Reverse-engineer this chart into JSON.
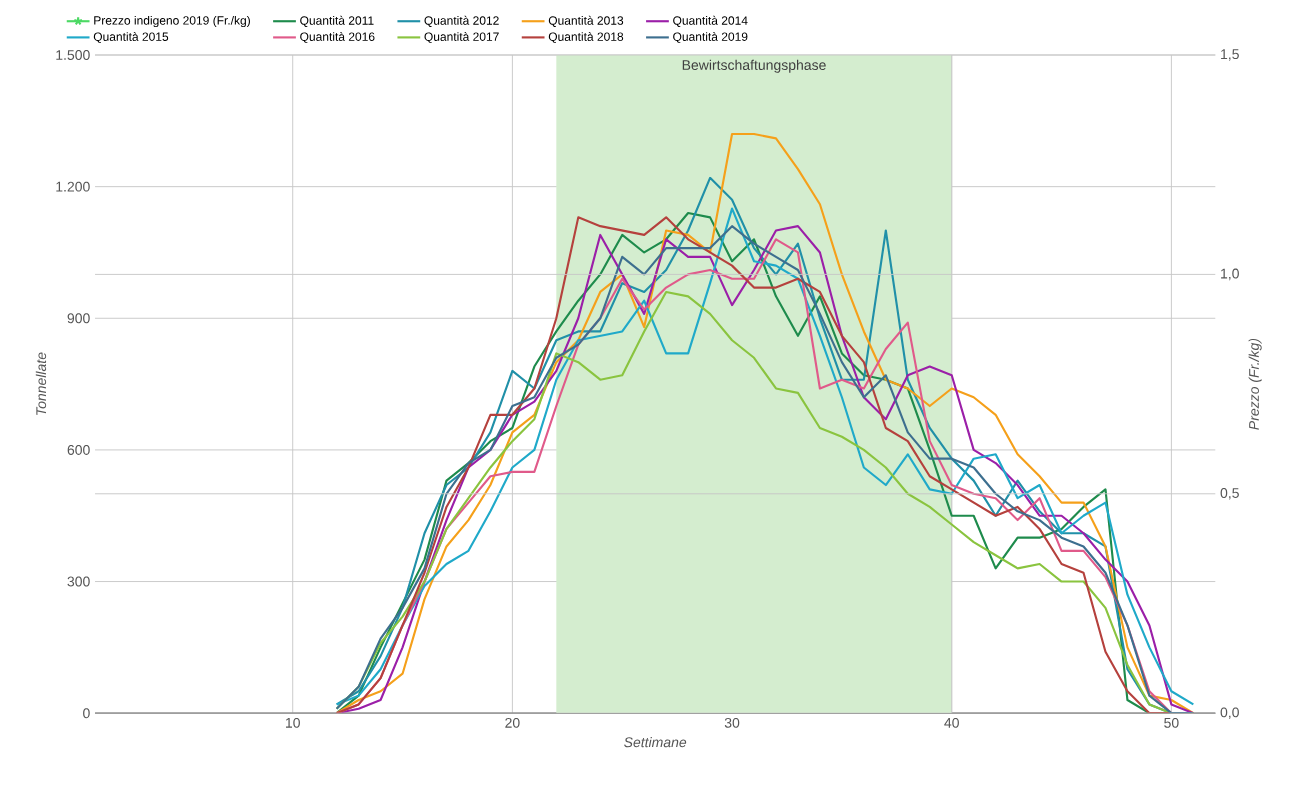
{
  "chart_data": {
    "type": "line",
    "xlabel": "Settimane",
    "ylabel": "Tonnellate",
    "y2label": "Prezzo (Fr./kg)",
    "x": [
      12,
      13,
      14,
      15,
      16,
      17,
      18,
      19,
      20,
      21,
      22,
      23,
      24,
      25,
      26,
      27,
      28,
      29,
      30,
      31,
      32,
      33,
      34,
      35,
      36,
      37,
      38,
      39,
      40,
      41,
      42,
      43,
      44,
      45,
      46,
      47,
      48,
      49,
      50,
      51
    ],
    "xlim": [
      1,
      52
    ],
    "xticks": [
      10,
      20,
      30,
      40,
      50
    ],
    "ylim": [
      0,
      1500
    ],
    "yticks": [
      {
        "value": 0,
        "label": "0"
      },
      {
        "value": 300,
        "label": "300"
      },
      {
        "value": 600,
        "label": "600"
      },
      {
        "value": 900,
        "label": "900"
      },
      {
        "value": 1200,
        "label": "1.200"
      },
      {
        "value": 1500,
        "label": "1.500"
      }
    ],
    "y2lim": [
      0,
      1.5
    ],
    "y2ticks": [
      {
        "value": 0,
        "label": "0,0"
      },
      {
        "value": 0.5,
        "label": "0,5"
      },
      {
        "value": 1.0,
        "label": "1,0"
      },
      {
        "value": 1.5,
        "label": "1,5"
      }
    ],
    "grid": true,
    "legend": "top",
    "line_style": "solid",
    "marker": "none",
    "bands": [
      {
        "axis": "x",
        "from": 22,
        "to": 40,
        "label": "Bewirtschaftungsphase",
        "color": "#d4edcf"
      }
    ],
    "series": [
      {
        "name": "Prezzo indigeno 2019 (Fr./kg)",
        "color": "#4cd964",
        "marker": "star",
        "values": [
          null,
          null,
          null,
          null,
          null,
          null,
          null,
          null,
          null,
          null,
          null,
          null,
          null,
          null,
          null,
          null,
          null,
          null,
          null,
          null,
          null,
          null,
          null,
          null,
          null,
          null,
          null,
          null,
          null,
          null,
          null,
          null,
          null,
          null,
          null,
          null,
          null,
          null,
          null,
          null
        ]
      },
      {
        "name": "Quantità 2011",
        "color": "#1e8b4c",
        "values": [
          0,
          40,
          150,
          250,
          350,
          530,
          570,
          620,
          650,
          790,
          870,
          940,
          1000,
          1090,
          1050,
          1080,
          1140,
          1130,
          1030,
          1080,
          950,
          860,
          950,
          820,
          770,
          760,
          740,
          600,
          450,
          450,
          330,
          400,
          400,
          420,
          470,
          510,
          30,
          0,
          0,
          0
        ]
      },
      {
        "name": "Quantità 2012",
        "color": "#2090a8",
        "values": [
          20,
          50,
          130,
          240,
          410,
          520,
          560,
          640,
          780,
          740,
          850,
          870,
          870,
          980,
          960,
          1010,
          1100,
          1220,
          1170,
          1060,
          1000,
          1070,
          900,
          760,
          760,
          1100,
          760,
          650,
          580,
          530,
          450,
          530,
          460,
          410,
          410,
          380,
          100,
          20,
          0,
          0
        ]
      },
      {
        "name": "Quantità 2013",
        "color": "#f5a01a",
        "values": [
          0,
          30,
          50,
          90,
          260,
          380,
          440,
          520,
          640,
          680,
          800,
          850,
          960,
          1000,
          880,
          1100,
          1090,
          1050,
          1320,
          1320,
          1310,
          1240,
          1160,
          1000,
          870,
          760,
          740,
          700,
          740,
          720,
          680,
          590,
          540,
          480,
          480,
          380,
          150,
          40,
          30,
          0
        ]
      },
      {
        "name": "Quantità 2014",
        "color": "#9b1fa8",
        "values": [
          0,
          10,
          30,
          150,
          300,
          440,
          560,
          600,
          680,
          710,
          780,
          900,
          1090,
          1000,
          910,
          1080,
          1040,
          1040,
          930,
          1010,
          1100,
          1110,
          1050,
          860,
          720,
          670,
          770,
          790,
          770,
          600,
          570,
          520,
          450,
          450,
          410,
          350,
          300,
          200,
          20,
          0
        ]
      },
      {
        "name": "Quantità 2015",
        "color": "#1fa9c9",
        "values": [
          20,
          40,
          100,
          200,
          290,
          340,
          370,
          460,
          560,
          600,
          760,
          850,
          860,
          870,
          940,
          820,
          820,
          980,
          1150,
          1030,
          1020,
          990,
          860,
          720,
          560,
          520,
          590,
          510,
          500,
          580,
          590,
          490,
          520,
          410,
          450,
          480,
          270,
          150,
          50,
          20
        ]
      },
      {
        "name": "Quantità 2016",
        "color": "#e05a8a",
        "values": [
          0,
          20,
          80,
          200,
          300,
          420,
          480,
          540,
          550,
          550,
          700,
          840,
          900,
          990,
          920,
          970,
          1000,
          1010,
          990,
          990,
          1080,
          1050,
          740,
          760,
          740,
          830,
          890,
          620,
          520,
          500,
          490,
          440,
          490,
          370,
          370,
          310,
          200,
          50,
          0,
          0
        ]
      },
      {
        "name": "Quantità 2017",
        "color": "#8ac43f",
        "values": [
          10,
          60,
          160,
          220,
          300,
          420,
          490,
          560,
          620,
          670,
          820,
          800,
          760,
          770,
          870,
          960,
          950,
          910,
          850,
          810,
          740,
          730,
          650,
          630,
          600,
          560,
          500,
          470,
          430,
          390,
          360,
          330,
          340,
          300,
          300,
          240,
          110,
          20,
          0,
          0
        ]
      },
      {
        "name": "Quantità 2018",
        "color": "#b5413d",
        "values": [
          0,
          20,
          80,
          200,
          320,
          470,
          560,
          680,
          680,
          740,
          900,
          1130,
          1110,
          1100,
          1090,
          1130,
          1080,
          1050,
          1020,
          970,
          970,
          990,
          960,
          860,
          800,
          650,
          620,
          540,
          510,
          480,
          450,
          470,
          420,
          340,
          320,
          140,
          50,
          0,
          0,
          0
        ]
      },
      {
        "name": "Quantità 2019",
        "color": "#3d6f8f",
        "values": [
          10,
          60,
          170,
          240,
          330,
          500,
          570,
          600,
          700,
          720,
          810,
          840,
          900,
          1040,
          1000,
          1060,
          1060,
          1060,
          1110,
          1070,
          1040,
          1010,
          910,
          800,
          720,
          770,
          640,
          580,
          580,
          560,
          500,
          460,
          440,
          400,
          380,
          320,
          200,
          40,
          0,
          0
        ]
      }
    ]
  }
}
